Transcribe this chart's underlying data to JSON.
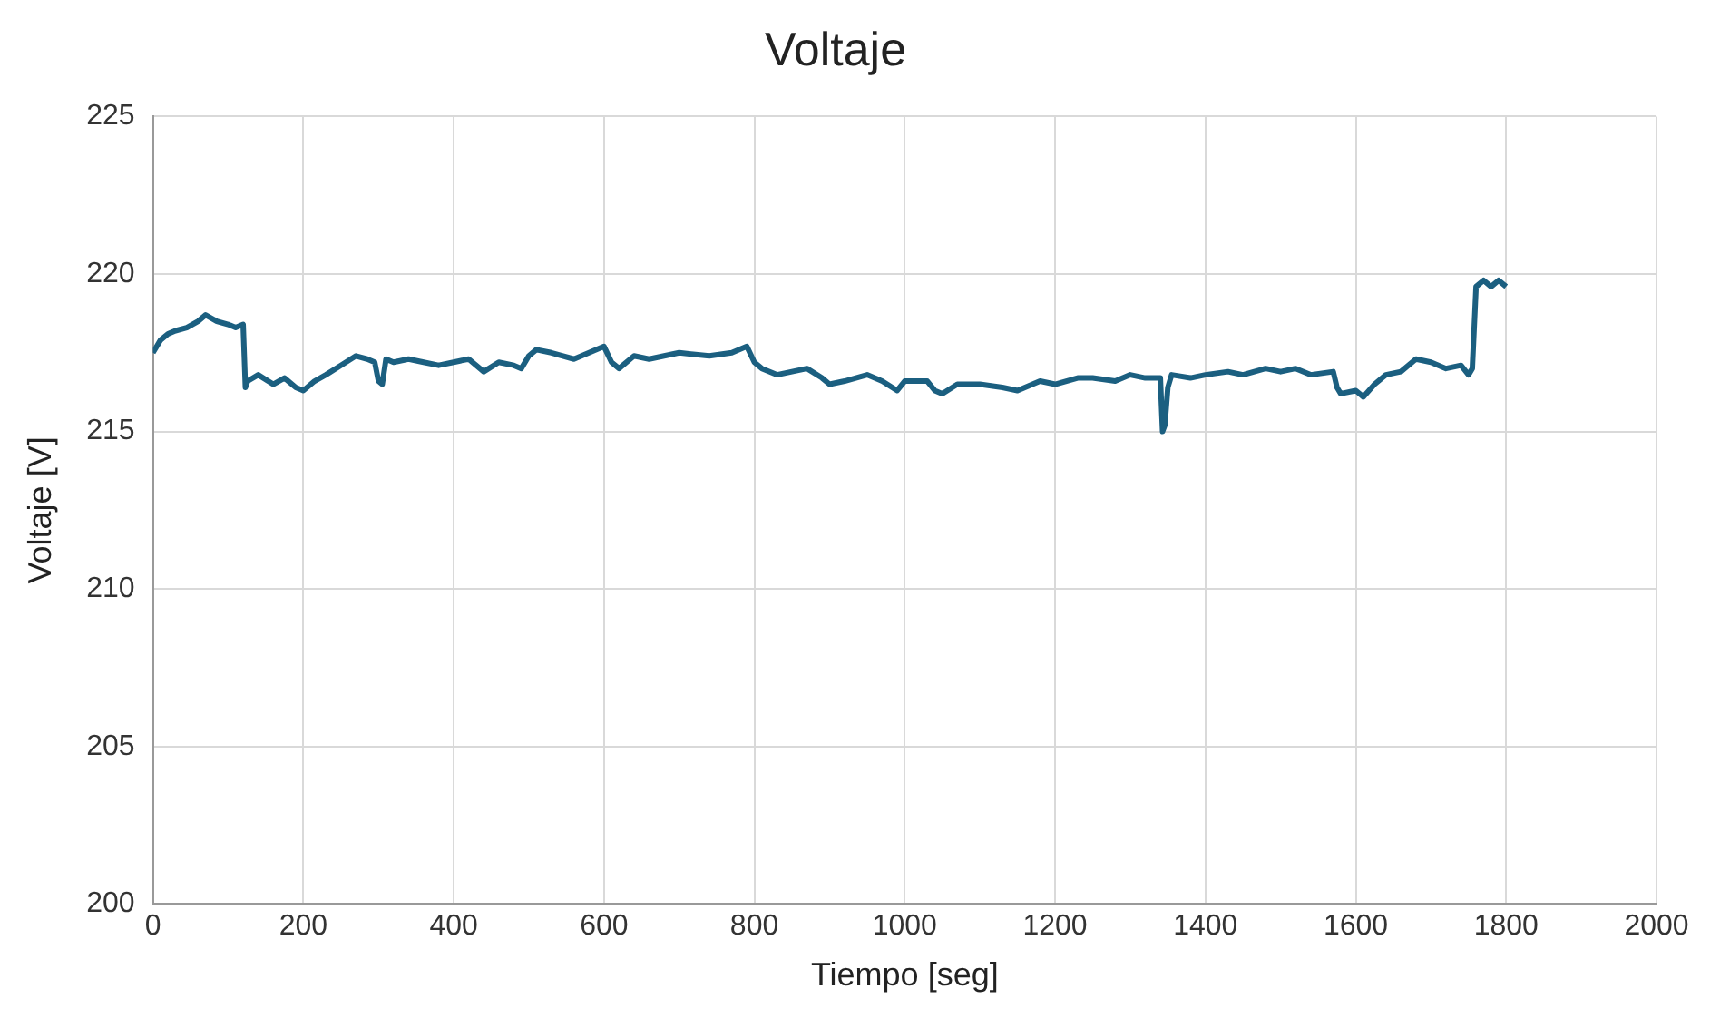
{
  "chart_data": {
    "type": "line",
    "title": "Voltaje",
    "xlabel": "Tiempo [seg]",
    "ylabel": "Voltaje [V]",
    "series": [
      {
        "color": "#1b5f80",
        "x": [
          0,
          10,
          20,
          30,
          45,
          60,
          70,
          85,
          100,
          110,
          120,
          123,
          126,
          140,
          160,
          175,
          190,
          200,
          215,
          230,
          250,
          270,
          285,
          295,
          300,
          305,
          310,
          320,
          340,
          360,
          380,
          400,
          420,
          440,
          460,
          480,
          490,
          500,
          510,
          530,
          560,
          580,
          600,
          610,
          620,
          640,
          660,
          700,
          740,
          770,
          790,
          800,
          810,
          830,
          850,
          870,
          890,
          900,
          920,
          950,
          970,
          990,
          1000,
          1030,
          1040,
          1050,
          1070,
          1100,
          1130,
          1150,
          1180,
          1200,
          1230,
          1250,
          1280,
          1300,
          1320,
          1340,
          1343,
          1346,
          1350,
          1355,
          1380,
          1400,
          1430,
          1450,
          1480,
          1500,
          1520,
          1540,
          1570,
          1575,
          1580,
          1600,
          1610,
          1625,
          1640,
          1660,
          1680,
          1700,
          1720,
          1740,
          1750,
          1755,
          1760,
          1770,
          1780,
          1790,
          1800
        ],
        "values": [
          217.5,
          217.9,
          218.1,
          218.2,
          218.3,
          218.5,
          218.7,
          218.5,
          218.4,
          218.3,
          218.4,
          216.4,
          216.6,
          216.8,
          216.5,
          216.7,
          216.4,
          216.3,
          216.6,
          216.8,
          217.1,
          217.4,
          217.3,
          217.2,
          216.6,
          216.5,
          217.3,
          217.2,
          217.3,
          217.2,
          217.1,
          217.2,
          217.3,
          216.9,
          217.2,
          217.1,
          217.0,
          217.4,
          217.6,
          217.5,
          217.3,
          217.5,
          217.7,
          217.2,
          217.0,
          217.4,
          217.3,
          217.5,
          217.4,
          217.5,
          217.7,
          217.2,
          217.0,
          216.8,
          216.9,
          217.0,
          216.7,
          216.5,
          216.6,
          216.8,
          216.6,
          216.3,
          216.6,
          216.6,
          216.3,
          216.2,
          216.5,
          216.5,
          216.4,
          216.3,
          216.6,
          216.5,
          216.7,
          216.7,
          216.6,
          216.8,
          216.7,
          216.7,
          215.0,
          215.2,
          216.4,
          216.8,
          216.7,
          216.8,
          216.9,
          216.8,
          217.0,
          216.9,
          217.0,
          216.8,
          216.9,
          216.4,
          216.2,
          216.3,
          216.1,
          216.5,
          216.8,
          216.9,
          217.3,
          217.2,
          217.0,
          217.1,
          216.8,
          217.0,
          219.6,
          219.8,
          219.6,
          219.8,
          219.6
        ]
      }
    ],
    "xlim": [
      0,
      2000
    ],
    "xticks": [
      0,
      200,
      400,
      600,
      800,
      1000,
      1200,
      1400,
      1600,
      1800,
      2000
    ],
    "ylim": [
      200,
      225
    ],
    "yticks": [
      200,
      205,
      210,
      215,
      220,
      225
    ],
    "grid": true,
    "legend": false
  }
}
